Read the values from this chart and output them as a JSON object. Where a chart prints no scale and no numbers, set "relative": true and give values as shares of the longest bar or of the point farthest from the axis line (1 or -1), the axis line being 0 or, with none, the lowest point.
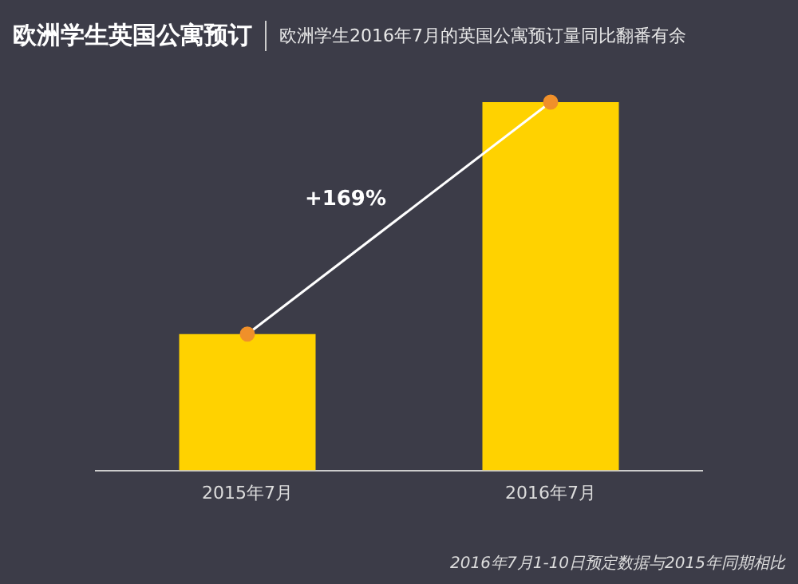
{
  "chart_data": {
    "type": "bar",
    "title": "欧洲学生英国公寓预订",
    "subtitle": "欧洲学生2016年7月的英国公寓预订量同比翻番有余",
    "relative": true,
    "categories": [
      "2015年7月",
      "2016年7月"
    ],
    "series": [
      {
        "color": "#ffd200",
        "values": [
          0.37,
          1
        ]
      },
      {
        "type": "line",
        "color": "#ffffff",
        "marker": "circle",
        "values": [
          0.37,
          1
        ]
      }
    ],
    "annotations": [
      "+169%",
      "2016年7月1-10日预定数据与2015年同期相比"
    ],
    "grid": false,
    "legend": false
  }
}
